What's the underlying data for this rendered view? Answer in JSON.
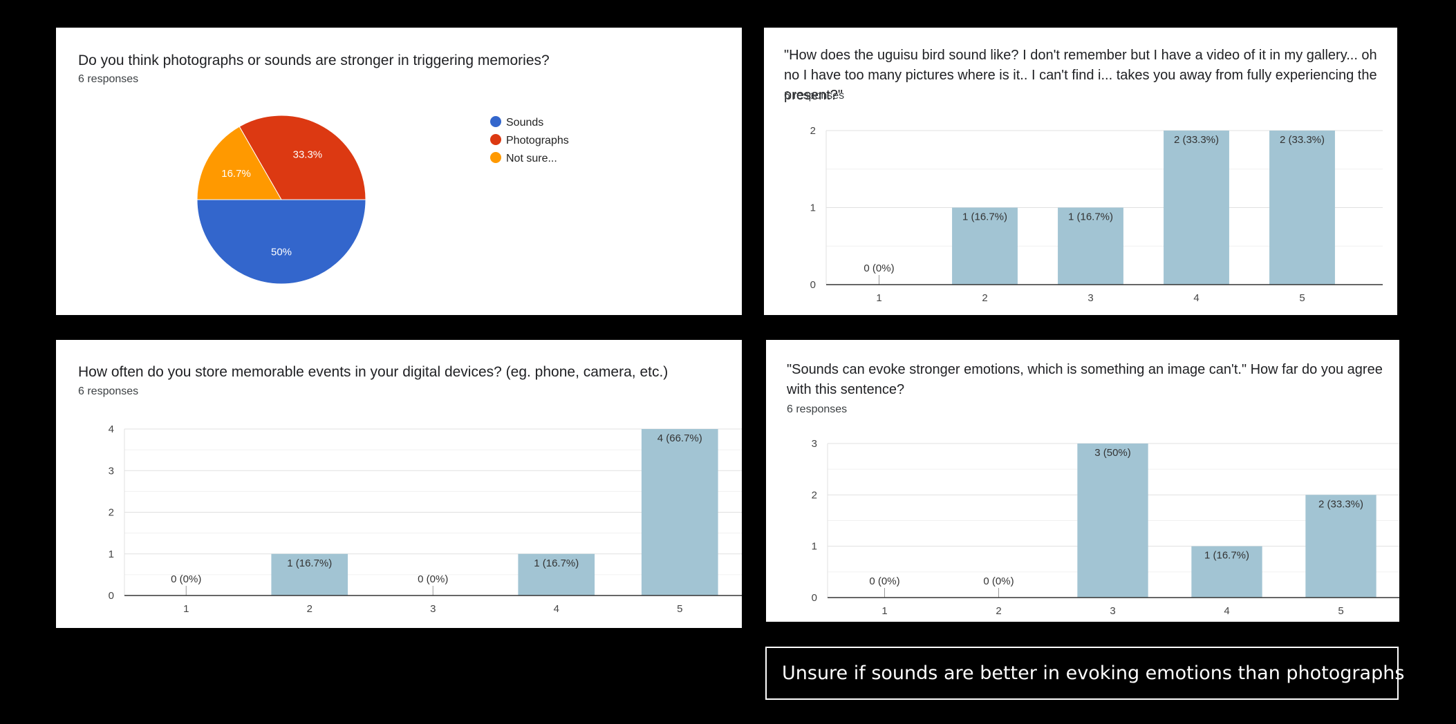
{
  "caption": "Unsure if sounds are better in evoking emotions than photographs",
  "colors": {
    "bar": "#a2c4d3",
    "sounds": "#3366cc",
    "photographs": "#dc3912",
    "not_sure": "#ff9900"
  },
  "chart_data": [
    {
      "type": "pie",
      "title": "Do you think photographs or sounds are stronger in triggering memories?",
      "subtitle": "6 responses",
      "legend_position": "right",
      "slices": [
        {
          "label": "Sounds",
          "value": 50,
          "display": "50%",
          "color": "#3366cc"
        },
        {
          "label": "Photographs",
          "value": 33.3,
          "display": "33.3%",
          "color": "#dc3912"
        },
        {
          "label": "Not sure...",
          "value": 16.7,
          "display": "16.7%",
          "color": "#ff9900"
        }
      ]
    },
    {
      "type": "bar",
      "title": "\"How does the uguisu bird sound like? I don't remember but I have a video of it in my gallery... oh no I have too many pictures where is it.. I can't find i... takes you away from fully experiencing the present?\"",
      "subtitle": "6 responses",
      "categories": [
        "1",
        "2",
        "3",
        "4",
        "5"
      ],
      "values": [
        0,
        1,
        1,
        2,
        2
      ],
      "labels": [
        "0 (0%)",
        "1 (16.7%)",
        "1 (16.7%)",
        "2 (33.3%)",
        "2 (33.3%)"
      ],
      "ylim": [
        0,
        2
      ],
      "yticks": [
        "0",
        "1",
        "2"
      ],
      "grid": true
    },
    {
      "type": "bar",
      "title": "How often do you store memorable events in your digital devices? (eg. phone, camera, etc.)",
      "subtitle": "6 responses",
      "categories": [
        "1",
        "2",
        "3",
        "4",
        "5"
      ],
      "values": [
        0,
        1,
        0,
        1,
        4
      ],
      "labels": [
        "0 (0%)",
        "1 (16.7%)",
        "0 (0%)",
        "1 (16.7%)",
        "4 (66.7%)"
      ],
      "ylim": [
        0,
        4
      ],
      "yticks": [
        "0",
        "1",
        "2",
        "3",
        "4"
      ],
      "grid": true
    },
    {
      "type": "bar",
      "title": "\"Sounds can evoke stronger emotions, which is something an image can't.\"  How far do you agree with this sentence?",
      "subtitle": "6 responses",
      "categories": [
        "1",
        "2",
        "3",
        "4",
        "5"
      ],
      "values": [
        0,
        0,
        3,
        1,
        2
      ],
      "labels": [
        "0 (0%)",
        "0 (0%)",
        "3 (50%)",
        "1 (16.7%)",
        "2 (33.3%)"
      ],
      "ylim": [
        0,
        3
      ],
      "yticks": [
        "0",
        "1",
        "2",
        "3"
      ],
      "grid": true
    }
  ]
}
